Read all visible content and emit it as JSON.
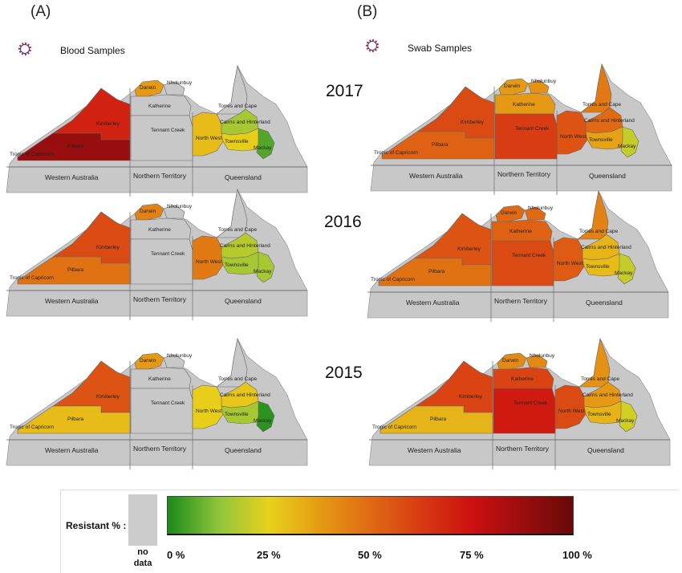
{
  "panels": [
    {
      "letter": "(A)",
      "title": "Blood Samples"
    },
    {
      "letter": "(B)",
      "title": "Swab Samples"
    }
  ],
  "years": [
    "2017",
    "2016",
    "2015"
  ],
  "region_labels": {
    "kimberley": "Kimberley",
    "pilbara": "Pilbara",
    "darwin": "Darwin",
    "nhulunbuy": "Nhulunbuy",
    "katherine": "Katherine",
    "tennant_creek": "Tennant Creek",
    "north_west": "North West",
    "torres_cape": "Torres and Cape",
    "cairns": "Cairns and Hinterland",
    "townsville": "Townsville",
    "mackay": "Mackay"
  },
  "state_labels": {
    "wa": "Western Australia",
    "nt": "Northern Territory",
    "qld": "Queensland"
  },
  "tropic_label": "Tropic of Capricorn",
  "legend": {
    "label": "Resistant % :",
    "no_data_line1": "no",
    "no_data_line2": "data",
    "no_data_color": "#c8c8c8",
    "stops": [
      {
        "value": 0,
        "color": "#1a8a1a"
      },
      {
        "value": 12.5,
        "color": "#8ec43c"
      },
      {
        "value": 25,
        "color": "#e8d21c"
      },
      {
        "value": 37.5,
        "color": "#e59b14"
      },
      {
        "value": 50,
        "color": "#e06a14"
      },
      {
        "value": 62.5,
        "color": "#d73a12"
      },
      {
        "value": 75,
        "color": "#cc1010"
      },
      {
        "value": 87.5,
        "color": "#9a0e0e"
      },
      {
        "value": 100,
        "color": "#6a0808"
      }
    ],
    "ticks": [
      "0 %",
      "25 %",
      "50 %",
      "75 %",
      "100 %"
    ]
  },
  "maps": [
    {
      "panel": "A",
      "year": "2017",
      "resistant_pct": {
        "kimberley": 70,
        "pilbara": 88,
        "darwin": 38,
        "nhulunbuy": null,
        "katherine": null,
        "tennant_creek": null,
        "north_west": 30,
        "torres_cape": null,
        "cairns": 16,
        "townsville": 26,
        "mackay": 6
      }
    },
    {
      "panel": "B",
      "year": "2017",
      "resistant_pct": {
        "kimberley": 58,
        "pilbara": 52,
        "darwin": 38,
        "nhulunbuy": 40,
        "katherine": 38,
        "tennant_creek": 62,
        "north_west": 56,
        "torres_cape": 46,
        "cairns": 50,
        "townsville": 36,
        "mackay": 20
      }
    },
    {
      "panel": "A",
      "year": "2016",
      "resistant_pct": {
        "kimberley": 58,
        "pilbara": 48,
        "darwin": 44,
        "nhulunbuy": null,
        "katherine": null,
        "tennant_creek": null,
        "north_west": 46,
        "torres_cape": null,
        "cairns": 18,
        "townsville": 16,
        "mackay": 16
      }
    },
    {
      "panel": "B",
      "year": "2016",
      "resistant_pct": {
        "kimberley": 56,
        "pilbara": 48,
        "darwin": 50,
        "nhulunbuy": 50,
        "katherine": 52,
        "tennant_creek": 58,
        "north_west": 54,
        "torres_cape": 44,
        "cairns": 32,
        "townsville": 30,
        "mackay": 20
      }
    },
    {
      "panel": "A",
      "year": "2015",
      "resistant_pct": {
        "kimberley": 56,
        "pilbara": 30,
        "darwin": 38,
        "nhulunbuy": null,
        "katherine": null,
        "tennant_creek": null,
        "north_west": 26,
        "torres_cape": null,
        "cairns": 28,
        "townsville": 16,
        "mackay": 2
      }
    },
    {
      "panel": "B",
      "year": "2015",
      "resistant_pct": {
        "kimberley": 60,
        "pilbara": 32,
        "darwin": 42,
        "nhulunbuy": 42,
        "katherine": 60,
        "tennant_creek": 72,
        "north_west": 58,
        "torres_cape": 40,
        "cairns": 38,
        "townsville": 32,
        "mackay": 22
      }
    }
  ]
}
